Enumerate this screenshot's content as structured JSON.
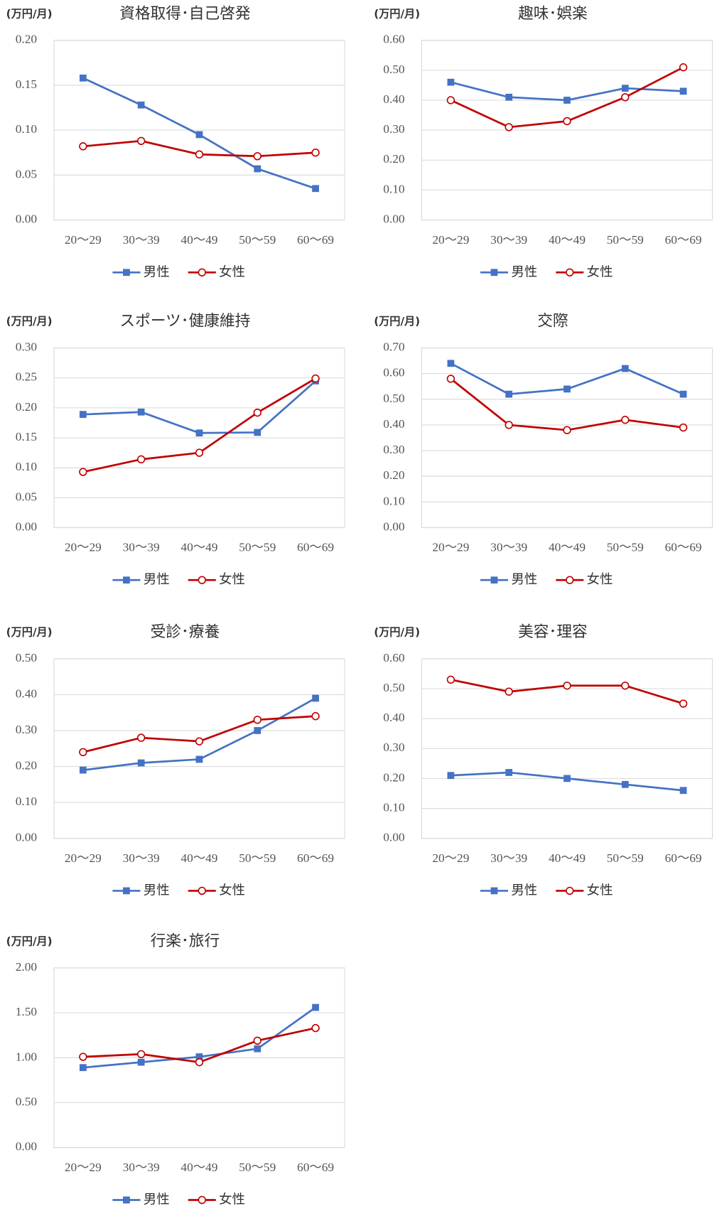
{
  "chart_data": [
    {
      "type": "line",
      "title": "資格取得･自己啓発",
      "unit": "(万円/月)",
      "categories": [
        "20～29",
        "30～39",
        "40～49",
        "50～59",
        "60～69"
      ],
      "series": [
        {
          "name": "男性",
          "color": "#4472c4",
          "marker": "square",
          "values": [
            0.158,
            0.128,
            0.095,
            0.057,
            0.035
          ]
        },
        {
          "name": "女性",
          "color": "#c00000",
          "marker": "circle",
          "values": [
            0.082,
            0.088,
            0.073,
            0.071,
            0.075
          ]
        }
      ],
      "ylim": [
        0,
        0.2
      ],
      "yticks": [
        {
          "value": 0,
          "label": "0.00"
        },
        {
          "value": 0.05,
          "label": "0.05"
        },
        {
          "value": 0.1,
          "label": "0.10"
        },
        {
          "value": 0.15,
          "label": "0.15"
        },
        {
          "value": 0.2,
          "label": "0.20"
        }
      ],
      "grid": true,
      "legend": "bottom"
    },
    {
      "type": "line",
      "title": "趣味･娯楽",
      "unit": "(万円/月)",
      "categories": [
        "20～29",
        "30～39",
        "40～49",
        "50～59",
        "60～69"
      ],
      "series": [
        {
          "name": "男性",
          "color": "#4472c4",
          "marker": "square",
          "values": [
            0.46,
            0.41,
            0.4,
            0.44,
            0.43
          ]
        },
        {
          "name": "女性",
          "color": "#c00000",
          "marker": "circle",
          "values": [
            0.4,
            0.31,
            0.33,
            0.41,
            0.51
          ]
        }
      ],
      "ylim": [
        0,
        0.6
      ],
      "yticks": [
        {
          "value": 0,
          "label": "0.00"
        },
        {
          "value": 0.1,
          "label": "0.10"
        },
        {
          "value": 0.2,
          "label": "0.20"
        },
        {
          "value": 0.3,
          "label": "0.30"
        },
        {
          "value": 0.4,
          "label": "0.40"
        },
        {
          "value": 0.5,
          "label": "0.50"
        },
        {
          "value": 0.6,
          "label": "0.60"
        }
      ],
      "grid": true,
      "legend": "bottom"
    },
    {
      "type": "line",
      "title": "スポーツ･健康維持",
      "unit": "(万円/月)",
      "categories": [
        "20～29",
        "30～39",
        "40～49",
        "50～59",
        "60～69"
      ],
      "series": [
        {
          "name": "男性",
          "color": "#4472c4",
          "marker": "square",
          "values": [
            0.189,
            0.193,
            0.158,
            0.159,
            0.245
          ]
        },
        {
          "name": "女性",
          "color": "#c00000",
          "marker": "circle",
          "values": [
            0.093,
            0.114,
            0.125,
            0.192,
            0.249
          ]
        }
      ],
      "ylim": [
        0,
        0.3
      ],
      "yticks": [
        {
          "value": 0,
          "label": "0.00"
        },
        {
          "value": 0.05,
          "label": "0.05"
        },
        {
          "value": 0.1,
          "label": "0.10"
        },
        {
          "value": 0.15,
          "label": "0.15"
        },
        {
          "value": 0.2,
          "label": "0.20"
        },
        {
          "value": 0.25,
          "label": "0.25"
        },
        {
          "value": 0.3,
          "label": "0.30"
        }
      ],
      "grid": true,
      "legend": "bottom"
    },
    {
      "type": "line",
      "title": "交際",
      "unit": "(万円/月)",
      "categories": [
        "20～29",
        "30～39",
        "40～49",
        "50～59",
        "60～69"
      ],
      "series": [
        {
          "name": "男性",
          "color": "#4472c4",
          "marker": "square",
          "values": [
            0.64,
            0.52,
            0.54,
            0.62,
            0.52
          ]
        },
        {
          "name": "女性",
          "color": "#c00000",
          "marker": "circle",
          "values": [
            0.58,
            0.4,
            0.38,
            0.42,
            0.39
          ]
        }
      ],
      "ylim": [
        0,
        0.7
      ],
      "yticks": [
        {
          "value": 0,
          "label": "0.00"
        },
        {
          "value": 0.1,
          "label": "0.10"
        },
        {
          "value": 0.2,
          "label": "0.20"
        },
        {
          "value": 0.3,
          "label": "0.30"
        },
        {
          "value": 0.4,
          "label": "0.40"
        },
        {
          "value": 0.5,
          "label": "0.50"
        },
        {
          "value": 0.6,
          "label": "0.60"
        },
        {
          "value": 0.7,
          "label": "0.70"
        }
      ],
      "grid": true,
      "legend": "bottom"
    },
    {
      "type": "line",
      "title": "受診･療養",
      "unit": "(万円/月)",
      "categories": [
        "20～29",
        "30～39",
        "40～49",
        "50～59",
        "60～69"
      ],
      "series": [
        {
          "name": "男性",
          "color": "#4472c4",
          "marker": "square",
          "values": [
            0.19,
            0.21,
            0.22,
            0.3,
            0.39
          ]
        },
        {
          "name": "女性",
          "color": "#c00000",
          "marker": "circle",
          "values": [
            0.24,
            0.28,
            0.27,
            0.33,
            0.34
          ]
        }
      ],
      "ylim": [
        0,
        0.5
      ],
      "yticks": [
        {
          "value": 0,
          "label": "0.00"
        },
        {
          "value": 0.1,
          "label": "0.10"
        },
        {
          "value": 0.2,
          "label": "0.20"
        },
        {
          "value": 0.3,
          "label": "0.30"
        },
        {
          "value": 0.4,
          "label": "0.40"
        },
        {
          "value": 0.5,
          "label": "0.50"
        }
      ],
      "grid": true,
      "legend": "bottom"
    },
    {
      "type": "line",
      "title": "美容･理容",
      "unit": "(万円/月)",
      "categories": [
        "20～29",
        "30～39",
        "40～49",
        "50～59",
        "60～69"
      ],
      "series": [
        {
          "name": "男性",
          "color": "#4472c4",
          "marker": "square",
          "values": [
            0.21,
            0.22,
            0.2,
            0.18,
            0.16
          ]
        },
        {
          "name": "女性",
          "color": "#c00000",
          "marker": "circle",
          "values": [
            0.53,
            0.49,
            0.51,
            0.51,
            0.45
          ]
        }
      ],
      "ylim": [
        0,
        0.6
      ],
      "yticks": [
        {
          "value": 0,
          "label": "0.00"
        },
        {
          "value": 0.1,
          "label": "0.10"
        },
        {
          "value": 0.2,
          "label": "0.20"
        },
        {
          "value": 0.3,
          "label": "0.30"
        },
        {
          "value": 0.4,
          "label": "0.40"
        },
        {
          "value": 0.5,
          "label": "0.50"
        },
        {
          "value": 0.6,
          "label": "0.60"
        }
      ],
      "grid": true,
      "legend": "bottom"
    },
    {
      "type": "line",
      "title": "行楽･旅行",
      "unit": "(万円/月)",
      "categories": [
        "20～29",
        "30～39",
        "40～49",
        "50～59",
        "60～69"
      ],
      "series": [
        {
          "name": "男性",
          "color": "#4472c4",
          "marker": "square",
          "values": [
            0.89,
            0.95,
            1.01,
            1.1,
            1.56
          ]
        },
        {
          "name": "女性",
          "color": "#c00000",
          "marker": "circle",
          "values": [
            1.01,
            1.04,
            0.95,
            1.19,
            1.33
          ]
        }
      ],
      "ylim": [
        0,
        2
      ],
      "yticks": [
        {
          "value": 0,
          "label": "0.00"
        },
        {
          "value": 0.5,
          "label": "0.50"
        },
        {
          "value": 1,
          "label": "1.00"
        },
        {
          "value": 1.5,
          "label": "1.50"
        },
        {
          "value": 2,
          "label": "2.00"
        }
      ],
      "grid": true,
      "legend": "bottom"
    }
  ]
}
